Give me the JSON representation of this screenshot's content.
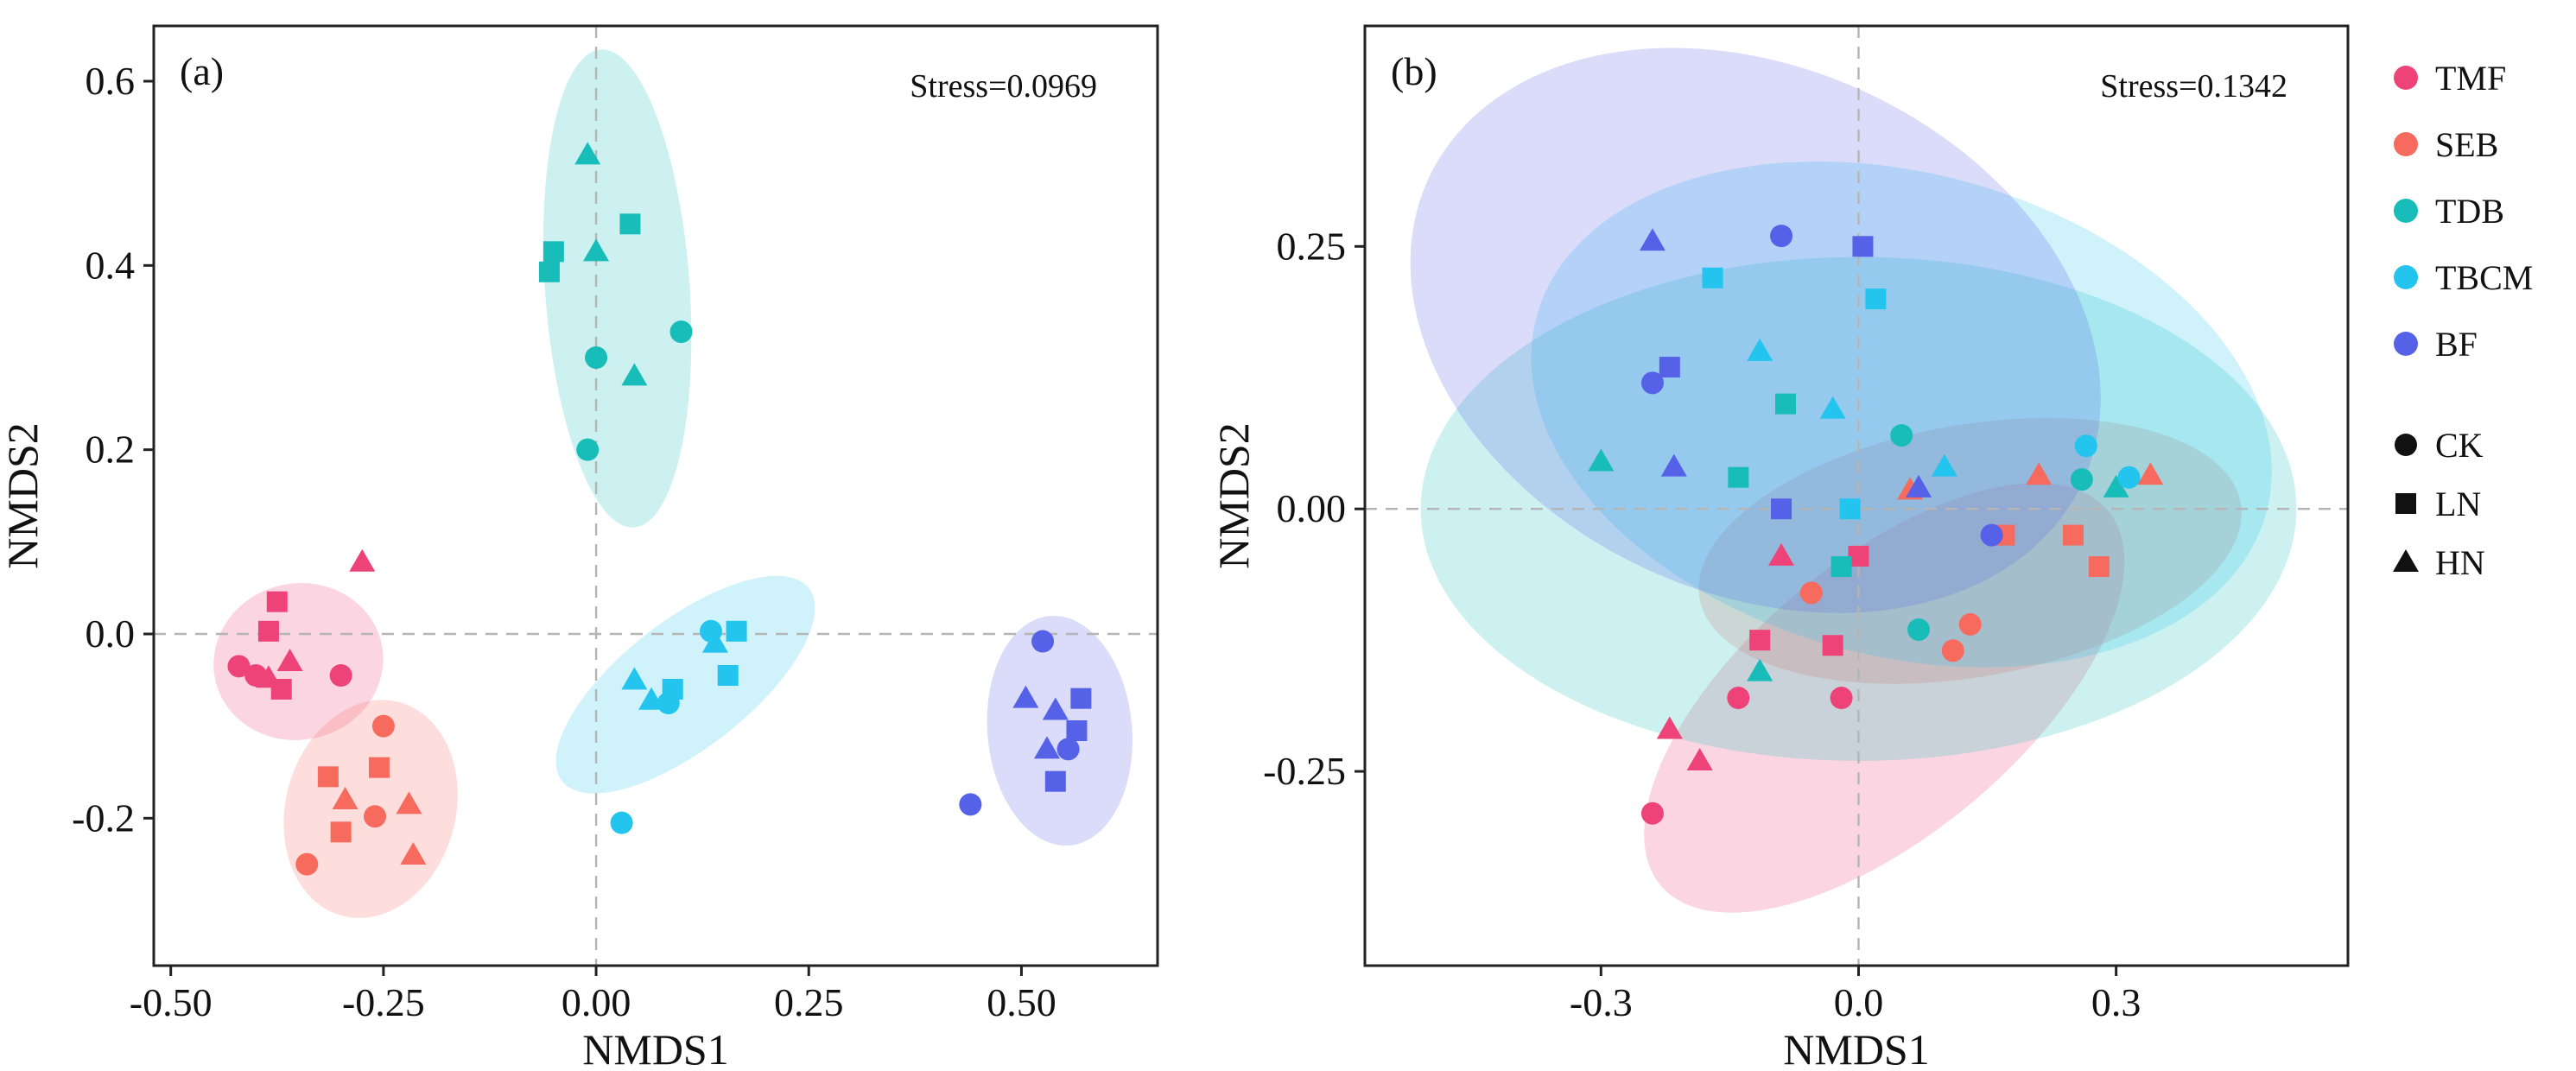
{
  "legend": {
    "groups": [
      {
        "name": "TMF",
        "color": "#EE4379"
      },
      {
        "name": "SEB",
        "color": "#F76A5E"
      },
      {
        "name": "TDB",
        "color": "#18BDB9"
      },
      {
        "name": "TBCM",
        "color": "#23C4EE"
      },
      {
        "name": "BF",
        "color": "#5561E6"
      }
    ],
    "treatments": [
      {
        "name": "CK",
        "shape": "circle"
      },
      {
        "name": "LN",
        "shape": "square"
      },
      {
        "name": "HN",
        "shape": "triangle"
      }
    ]
  },
  "chart_data": [
    {
      "type": "scatter",
      "panel_label": "(a)",
      "stress_text": "Stress=0.0969",
      "xlabel": "NMDS1",
      "ylabel": "NMDS2",
      "xlim": [
        -0.52,
        0.66
      ],
      "ylim": [
        -0.36,
        0.66
      ],
      "xticks": [
        -0.5,
        -0.25,
        0.0,
        0.25,
        0.5
      ],
      "xtick_labels": [
        "-0.50",
        "-0.25",
        "0.00",
        "0.25",
        "0.50"
      ],
      "yticks": [
        -0.2,
        0.0,
        0.2,
        0.4,
        0.6
      ],
      "ytick_labels": [
        "-0.2",
        "0.0",
        "0.2",
        "0.4",
        "0.6"
      ],
      "reference_lines": {
        "x": 0,
        "y": 0
      },
      "ellipses": [
        {
          "group": "TMF",
          "cx": -0.35,
          "cy": -0.03,
          "rx": 0.1,
          "ry": 0.085,
          "angle": 12
        },
        {
          "group": "SEB",
          "cx": -0.265,
          "cy": -0.19,
          "rx": 0.1,
          "ry": 0.12,
          "angle": -15
        },
        {
          "group": "TDB",
          "cx": 0.025,
          "cy": 0.375,
          "rx": 0.085,
          "ry": 0.26,
          "angle": 4
        },
        {
          "group": "TBCM",
          "cx": 0.105,
          "cy": -0.055,
          "rx": 0.075,
          "ry": 0.17,
          "angle": -52
        },
        {
          "group": "BF",
          "cx": 0.545,
          "cy": -0.105,
          "rx": 0.085,
          "ry": 0.125,
          "angle": 5
        }
      ],
      "points": [
        {
          "group": "TMF",
          "shape": "circle",
          "x": -0.42,
          "y": -0.035
        },
        {
          "group": "TMF",
          "shape": "circle",
          "x": -0.4,
          "y": -0.045
        },
        {
          "group": "TMF",
          "shape": "circle",
          "x": -0.3,
          "y": -0.045
        },
        {
          "group": "TMF",
          "shape": "square",
          "x": -0.375,
          "y": 0.035
        },
        {
          "group": "TMF",
          "shape": "square",
          "x": -0.385,
          "y": 0.003
        },
        {
          "group": "TMF",
          "shape": "square",
          "x": -0.37,
          "y": -0.06
        },
        {
          "group": "TMF",
          "shape": "triangle",
          "x": -0.275,
          "y": 0.078
        },
        {
          "group": "TMF",
          "shape": "triangle",
          "x": -0.36,
          "y": -0.03
        },
        {
          "group": "TMF",
          "shape": "triangle",
          "x": -0.385,
          "y": -0.048
        },
        {
          "group": "SEB",
          "shape": "circle",
          "x": -0.25,
          "y": -0.1
        },
        {
          "group": "SEB",
          "shape": "circle",
          "x": -0.26,
          "y": -0.198
        },
        {
          "group": "SEB",
          "shape": "circle",
          "x": -0.34,
          "y": -0.25
        },
        {
          "group": "SEB",
          "shape": "square",
          "x": -0.315,
          "y": -0.155
        },
        {
          "group": "SEB",
          "shape": "square",
          "x": -0.255,
          "y": -0.145
        },
        {
          "group": "SEB",
          "shape": "square",
          "x": -0.3,
          "y": -0.215
        },
        {
          "group": "SEB",
          "shape": "triangle",
          "x": -0.295,
          "y": -0.18
        },
        {
          "group": "SEB",
          "shape": "triangle",
          "x": -0.22,
          "y": -0.185
        },
        {
          "group": "SEB",
          "shape": "triangle",
          "x": -0.215,
          "y": -0.24
        },
        {
          "group": "TDB",
          "shape": "circle",
          "x": 0.0,
          "y": 0.3
        },
        {
          "group": "TDB",
          "shape": "circle",
          "x": 0.1,
          "y": 0.328
        },
        {
          "group": "TDB",
          "shape": "circle",
          "x": -0.01,
          "y": 0.2
        },
        {
          "group": "TDB",
          "shape": "square",
          "x": 0.04,
          "y": 0.445
        },
        {
          "group": "TDB",
          "shape": "square",
          "x": -0.05,
          "y": 0.415
        },
        {
          "group": "TDB",
          "shape": "square",
          "x": -0.055,
          "y": 0.393
        },
        {
          "group": "TDB",
          "shape": "triangle",
          "x": -0.01,
          "y": 0.52
        },
        {
          "group": "TDB",
          "shape": "triangle",
          "x": 0.0,
          "y": 0.415
        },
        {
          "group": "TDB",
          "shape": "triangle",
          "x": 0.045,
          "y": 0.28
        },
        {
          "group": "TBCM",
          "shape": "circle",
          "x": 0.135,
          "y": 0.003
        },
        {
          "group": "TBCM",
          "shape": "circle",
          "x": 0.085,
          "y": -0.075
        },
        {
          "group": "TBCM",
          "shape": "circle",
          "x": 0.03,
          "y": -0.205
        },
        {
          "group": "TBCM",
          "shape": "square",
          "x": 0.165,
          "y": 0.003
        },
        {
          "group": "TBCM",
          "shape": "square",
          "x": 0.155,
          "y": -0.045
        },
        {
          "group": "TBCM",
          "shape": "square",
          "x": 0.09,
          "y": -0.06
        },
        {
          "group": "TBCM",
          "shape": "triangle",
          "x": 0.14,
          "y": -0.01
        },
        {
          "group": "TBCM",
          "shape": "triangle",
          "x": 0.045,
          "y": -0.05
        },
        {
          "group": "TBCM",
          "shape": "triangle",
          "x": 0.065,
          "y": -0.072
        },
        {
          "group": "BF",
          "shape": "circle",
          "x": 0.525,
          "y": -0.008
        },
        {
          "group": "BF",
          "shape": "circle",
          "x": 0.555,
          "y": -0.125
        },
        {
          "group": "BF",
          "shape": "circle",
          "x": 0.44,
          "y": -0.185
        },
        {
          "group": "BF",
          "shape": "square",
          "x": 0.57,
          "y": -0.07
        },
        {
          "group": "BF",
          "shape": "square",
          "x": 0.565,
          "y": -0.105
        },
        {
          "group": "BF",
          "shape": "square",
          "x": 0.54,
          "y": -0.16
        },
        {
          "group": "BF",
          "shape": "triangle",
          "x": 0.505,
          "y": -0.07
        },
        {
          "group": "BF",
          "shape": "triangle",
          "x": 0.54,
          "y": -0.083
        },
        {
          "group": "BF",
          "shape": "triangle",
          "x": 0.53,
          "y": -0.125
        }
      ]
    },
    {
      "type": "scatter",
      "panel_label": "(b)",
      "stress_text": "Stress=0.1342",
      "xlabel": "NMDS1",
      "ylabel": "NMDS2",
      "xlim": [
        -0.575,
        0.57
      ],
      "ylim": [
        -0.435,
        0.46
      ],
      "xticks": [
        -0.3,
        0.0,
        0.3
      ],
      "xtick_labels": [
        "-0.3",
        "0.0",
        "0.3"
      ],
      "yticks": [
        -0.25,
        0.0,
        0.25
      ],
      "ytick_labels": [
        "-0.25",
        "0.00",
        "0.25"
      ],
      "reference_lines": {
        "x": 0,
        "y": 0
      },
      "ellipses": [
        {
          "group": "TMF",
          "cx": 0.03,
          "cy": -0.18,
          "rx": 0.34,
          "ry": 0.13,
          "angle": 40
        },
        {
          "group": "SEB",
          "cx": 0.13,
          "cy": -0.04,
          "rx": 0.32,
          "ry": 0.12,
          "angle": 10
        },
        {
          "group": "TDB",
          "cx": 0.0,
          "cy": 0.0,
          "rx": 0.51,
          "ry": 0.24,
          "angle": 0
        },
        {
          "group": "TBCM",
          "cx": 0.05,
          "cy": 0.09,
          "rx": 0.44,
          "ry": 0.23,
          "angle": -15
        },
        {
          "group": "BF",
          "cx": -0.12,
          "cy": 0.17,
          "rx": 0.42,
          "ry": 0.25,
          "angle": -25
        }
      ],
      "points": [
        {
          "group": "TMF",
          "shape": "circle",
          "x": -0.24,
          "y": -0.29
        },
        {
          "group": "TMF",
          "shape": "circle",
          "x": -0.14,
          "y": -0.18
        },
        {
          "group": "TMF",
          "shape": "circle",
          "x": -0.02,
          "y": -0.18
        },
        {
          "group": "TMF",
          "shape": "square",
          "x": -0.115,
          "y": -0.125
        },
        {
          "group": "TMF",
          "shape": "square",
          "x": -0.03,
          "y": -0.13
        },
        {
          "group": "TMF",
          "shape": "square",
          "x": 0.0,
          "y": -0.045
        },
        {
          "group": "TMF",
          "shape": "triangle",
          "x": -0.22,
          "y": -0.21
        },
        {
          "group": "TMF",
          "shape": "triangle",
          "x": -0.185,
          "y": -0.24
        },
        {
          "group": "TMF",
          "shape": "triangle",
          "x": -0.09,
          "y": -0.045
        },
        {
          "group": "SEB",
          "shape": "circle",
          "x": -0.055,
          "y": -0.08
        },
        {
          "group": "SEB",
          "shape": "circle",
          "x": 0.11,
          "y": -0.135
        },
        {
          "group": "SEB",
          "shape": "circle",
          "x": 0.13,
          "y": -0.11
        },
        {
          "group": "SEB",
          "shape": "square",
          "x": 0.17,
          "y": -0.025
        },
        {
          "group": "SEB",
          "shape": "square",
          "x": 0.25,
          "y": -0.025
        },
        {
          "group": "SEB",
          "shape": "square",
          "x": 0.28,
          "y": -0.055
        },
        {
          "group": "SEB",
          "shape": "triangle",
          "x": 0.06,
          "y": 0.018
        },
        {
          "group": "SEB",
          "shape": "triangle",
          "x": 0.21,
          "y": 0.032
        },
        {
          "group": "SEB",
          "shape": "triangle",
          "x": 0.34,
          "y": 0.032
        },
        {
          "group": "TDB",
          "shape": "circle",
          "x": 0.07,
          "y": -0.115
        },
        {
          "group": "TDB",
          "shape": "circle",
          "x": 0.05,
          "y": 0.07
        },
        {
          "group": "TDB",
          "shape": "circle",
          "x": 0.26,
          "y": 0.028
        },
        {
          "group": "TDB",
          "shape": "square",
          "x": -0.085,
          "y": 0.1
        },
        {
          "group": "TDB",
          "shape": "square",
          "x": -0.14,
          "y": 0.03
        },
        {
          "group": "TDB",
          "shape": "square",
          "x": -0.02,
          "y": -0.055
        },
        {
          "group": "TDB",
          "shape": "triangle",
          "x": -0.3,
          "y": 0.045
        },
        {
          "group": "TDB",
          "shape": "triangle",
          "x": -0.115,
          "y": -0.155
        },
        {
          "group": "TDB",
          "shape": "triangle",
          "x": 0.3,
          "y": 0.02
        },
        {
          "group": "TBCM",
          "shape": "circle",
          "x": 0.265,
          "y": 0.06
        },
        {
          "group": "TBCM",
          "shape": "circle",
          "x": 0.315,
          "y": 0.03
        },
        {
          "group": "TBCM",
          "shape": "square",
          "x": -0.17,
          "y": 0.22
        },
        {
          "group": "TBCM",
          "shape": "square",
          "x": 0.02,
          "y": 0.2
        },
        {
          "group": "TBCM",
          "shape": "square",
          "x": -0.01,
          "y": 0.0
        },
        {
          "group": "TBCM",
          "shape": "triangle",
          "x": -0.115,
          "y": 0.15
        },
        {
          "group": "TBCM",
          "shape": "triangle",
          "x": -0.03,
          "y": 0.095
        },
        {
          "group": "TBCM",
          "shape": "triangle",
          "x": 0.1,
          "y": 0.04
        },
        {
          "group": "BF",
          "shape": "circle",
          "x": -0.09,
          "y": 0.26
        },
        {
          "group": "BF",
          "shape": "circle",
          "x": -0.24,
          "y": 0.12
        },
        {
          "group": "BF",
          "shape": "circle",
          "x": 0.155,
          "y": -0.025
        },
        {
          "group": "BF",
          "shape": "square",
          "x": 0.005,
          "y": 0.25
        },
        {
          "group": "BF",
          "shape": "square",
          "x": -0.22,
          "y": 0.135
        },
        {
          "group": "BF",
          "shape": "square",
          "x": -0.09,
          "y": 0.0
        },
        {
          "group": "BF",
          "shape": "triangle",
          "x": -0.24,
          "y": 0.255
        },
        {
          "group": "BF",
          "shape": "triangle",
          "x": -0.215,
          "y": 0.04
        },
        {
          "group": "BF",
          "shape": "triangle",
          "x": 0.07,
          "y": 0.02
        }
      ]
    }
  ]
}
